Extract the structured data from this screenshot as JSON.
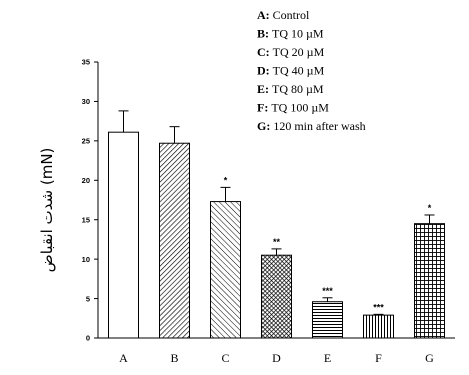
{
  "chart_data": {
    "type": "bar",
    "categories": [
      "A",
      "B",
      "C",
      "D",
      "E",
      "F",
      "G"
    ],
    "values": [
      26.1,
      24.7,
      17.3,
      10.5,
      4.6,
      2.9,
      14.5
    ],
    "errors": [
      2.7,
      2.1,
      1.8,
      0.8,
      0.5,
      0.1,
      1.1
    ],
    "significance": [
      "",
      "",
      "*",
      "**",
      "***",
      "***",
      "*"
    ],
    "patterns": [
      "none",
      "diag-right-dense",
      "diag-left",
      "crosshatch-dense",
      "horizontal",
      "vertical",
      "grid"
    ],
    "ylim": [
      0,
      35
    ],
    "yticks": [
      0,
      5,
      10,
      15,
      20,
      25,
      30,
      35
    ],
    "ylabel": "(mN) شدت انقباض",
    "xlabel": "",
    "title": "",
    "grid": false,
    "legend_placement": "top-right",
    "legend": [
      {
        "key": "A:",
        "text": "Control"
      },
      {
        "key": "B:",
        "text": "TQ 10 µM"
      },
      {
        "key": "C:",
        "text": "TQ 20 µM"
      },
      {
        "key": "D:",
        "text": "TQ 40 µM"
      },
      {
        "key": "E:",
        "text": "TQ 80 µM"
      },
      {
        "key": "F:",
        "text": "TQ 100 µM"
      },
      {
        "key": "G:",
        "text": "120 min after wash"
      }
    ]
  }
}
